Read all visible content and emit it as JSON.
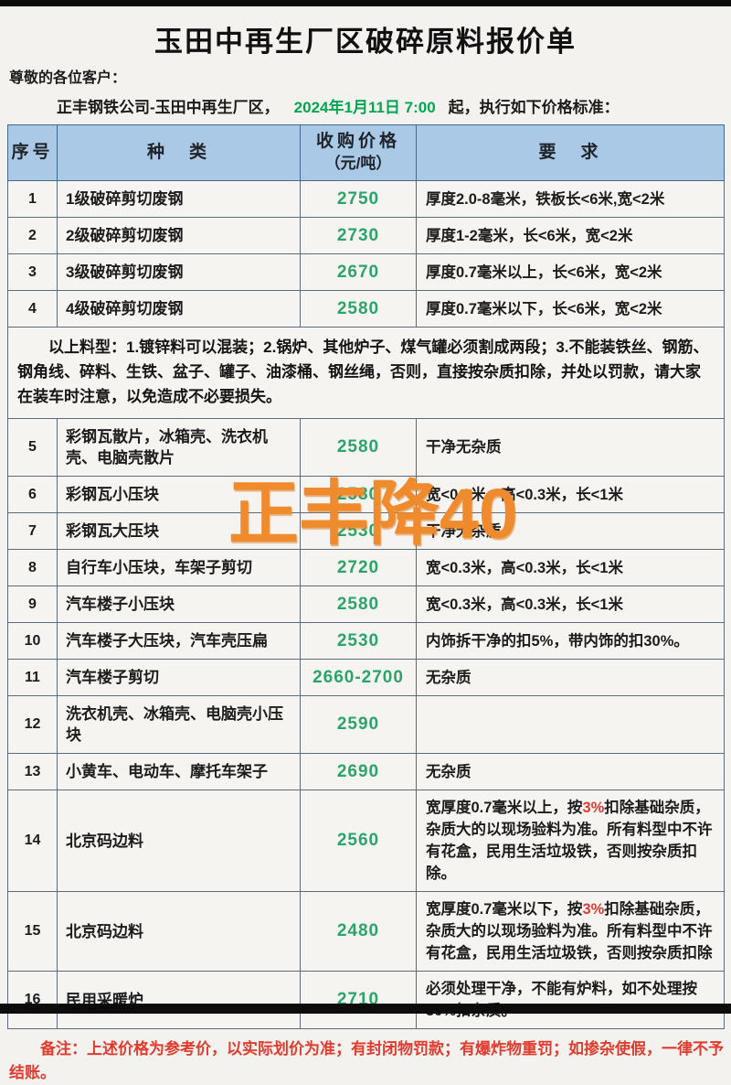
{
  "page": {
    "title": "玉田中再生厂区破碎原料报价单",
    "greeting": "尊敬的各位客户：",
    "intro_prefix": "正丰钢铁公司-玉田中再生厂区，",
    "intro_date": "2024年1月11日 7:00",
    "intro_suffix": "起，执行如下价格标准：",
    "watermark": "正丰降40",
    "remark": "备注：上述价格为参考价，以实际划价为准；有封闭物罚款；有爆炸物重罚；如掺杂使假，一律不予结账。"
  },
  "colors": {
    "header_bg": "#a9c9e6",
    "price_green": "#2aa56a",
    "date_green": "#00a651",
    "watermark_orange": "#ef8a2d",
    "remark_red": "#e03b2e"
  },
  "table": {
    "headers": [
      {
        "label": "序号"
      },
      {
        "label": "种　类"
      },
      {
        "label": "收购价格",
        "sub": "（元/吨）"
      },
      {
        "label": "要　求"
      }
    ],
    "rows": [
      {
        "type": "item",
        "seq": "1",
        "kind": "1级破碎剪切废钢",
        "price": "2750",
        "req": [
          {
            "t": "厚度2.0-8毫米，铁板长<6米,宽<2米"
          }
        ]
      },
      {
        "type": "item",
        "seq": "2",
        "kind": "2级破碎剪切废钢",
        "price": "2730",
        "req": [
          {
            "t": "厚度1-2毫米，长<6米，宽<2米"
          }
        ]
      },
      {
        "type": "item",
        "seq": "3",
        "kind": "3级破碎剪切废钢",
        "price": "2670",
        "req": [
          {
            "t": "厚度0.7毫米以上，长<6米，宽<2米"
          }
        ]
      },
      {
        "type": "item",
        "seq": "4",
        "kind": "4级破碎剪切废钢",
        "price": "2580",
        "req": [
          {
            "t": "厚度0.7毫米以下，长<6米，宽<2米"
          }
        ]
      },
      {
        "type": "note",
        "text": "以上料型：1.镀锌料可以混装；2.锅炉、其他炉子、煤气罐必须割成两段；3.不能装铁丝、钢筋、钢角线、碎料、生铁、盆子、罐子、油漆桶、钢丝绳，否则，直接按杂质扣除，并处以罚款，请大家在装车时注意，以免造成不必要损失。"
      },
      {
        "type": "item",
        "seq": "5",
        "kind": "彩钢瓦散片，冰箱壳、洗衣机壳、电脑壳散片",
        "price": "2580",
        "req": [
          {
            "t": "干净无杂质"
          }
        ]
      },
      {
        "type": "item",
        "seq": "6",
        "kind": "彩钢瓦小压块",
        "price": "2580",
        "req": [
          {
            "t": "宽<0.3米，高<0.3米，长<1米"
          }
        ]
      },
      {
        "type": "item",
        "seq": "7",
        "kind": "彩钢瓦大压块",
        "price": "2530",
        "req": [
          {
            "t": "干净无杂质"
          }
        ]
      },
      {
        "type": "item",
        "seq": "8",
        "kind": "自行车小压块，车架子剪切",
        "price": "2720",
        "req": [
          {
            "t": "宽<0.3米，高<0.3米，长<1米"
          }
        ]
      },
      {
        "type": "item",
        "seq": "9",
        "kind": "汽车楼子小压块",
        "price": "2580",
        "req": [
          {
            "t": "宽<0.3米，高<0.3米，长<1米"
          }
        ]
      },
      {
        "type": "item",
        "seq": "10",
        "kind": "汽车楼子大压块，汽车壳压扁",
        "price": "2530",
        "req": [
          {
            "t": "内饰拆干净的扣5%，带内饰的扣30%。"
          }
        ]
      },
      {
        "type": "item",
        "seq": "11",
        "kind": "汽车楼子剪切",
        "price": "2660-2700",
        "req": [
          {
            "t": "无杂质"
          }
        ]
      },
      {
        "type": "item",
        "seq": "12",
        "kind": "洗衣机壳、冰箱壳、电脑壳小压块",
        "price": "2590",
        "req": []
      },
      {
        "type": "item",
        "seq": "13",
        "kind": "小黄车、电动车、摩托车架子",
        "price": "2690",
        "req": [
          {
            "t": "无杂质"
          }
        ]
      },
      {
        "type": "item",
        "seq": "14",
        "kind": "北京码边料",
        "price": "2560",
        "req": [
          {
            "t": "宽厚度0.7毫米以上，按"
          },
          {
            "t": "3%",
            "red": true
          },
          {
            "t": "扣除基础杂质，杂质大的以现场验料为准。所有料型中不许有花盒，民用生活垃圾铁，否则按杂质扣除。"
          }
        ]
      },
      {
        "type": "item",
        "seq": "15",
        "kind": "北京码边料",
        "price": "2480",
        "req": [
          {
            "t": "宽厚度0.7毫米以下，按"
          },
          {
            "t": "3%",
            "red": true
          },
          {
            "t": "扣除基础杂质，杂质大的以现场验料为准。所有料型中不许有花盒，民用生活垃圾铁，否则按杂质扣除"
          }
        ]
      },
      {
        "type": "item",
        "seq": "16",
        "kind": "民用采暖炉",
        "price": "2710",
        "req": [
          {
            "t": "必须处理干净，不能有炉料，如不处理按30%扣杂质。"
          }
        ]
      }
    ]
  }
}
